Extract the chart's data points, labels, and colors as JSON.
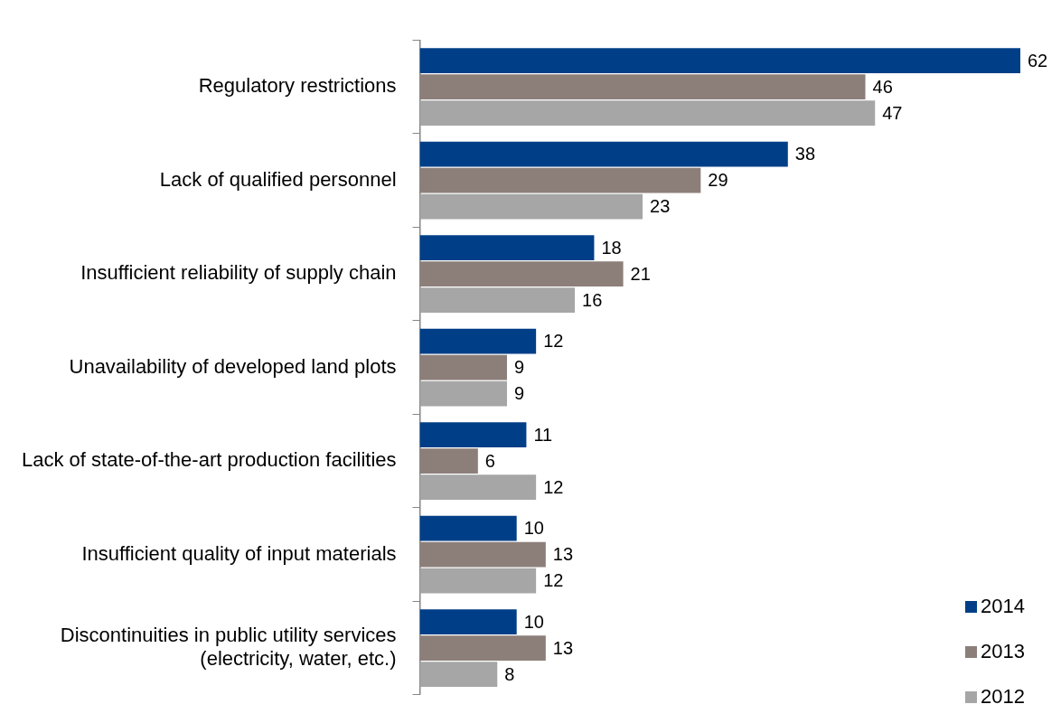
{
  "chart_data": {
    "type": "bar",
    "orientation": "horizontal",
    "data_labels": true,
    "legend": "bottom right",
    "grid": false,
    "categories": [
      "Regulatory restrictions",
      "Lack of qualified personnel",
      "Insufficient reliability of supply chain",
      "Unavailability of developed land plots",
      "Lack of state-of-the-art production facilities",
      "Insufficient quality of input materials",
      "Discontinuities in public utility services (electricity, water, etc.)"
    ],
    "series": [
      {
        "name": "2014",
        "color": "#003f87",
        "values": [
          62,
          38,
          18,
          12,
          11,
          10,
          10
        ]
      },
      {
        "name": "2013",
        "color": "#8c7f7a",
        "values": [
          46,
          29,
          21,
          9,
          6,
          13,
          13
        ]
      },
      {
        "name": "2012",
        "color": "#a6a6a6",
        "values": [
          47,
          23,
          16,
          9,
          12,
          12,
          8
        ]
      }
    ]
  }
}
